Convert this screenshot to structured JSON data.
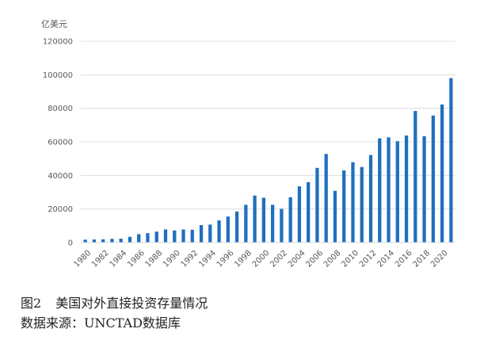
{
  "chart_data": {
    "type": "bar",
    "unit_label": "亿美元",
    "ylim": [
      0,
      120000
    ],
    "yticks": [
      "0",
      "20000",
      "40000",
      "60000",
      "80000",
      "100000",
      "120000"
    ],
    "grid": true,
    "bar_color": "#1f6fbf",
    "categories": [
      "1980",
      "1981",
      "1982",
      "1983",
      "1984",
      "1985",
      "1986",
      "1987",
      "1988",
      "1989",
      "1990",
      "1991",
      "1992",
      "1993",
      "1994",
      "1995",
      "1996",
      "1997",
      "1998",
      "1999",
      "2000",
      "2001",
      "2002",
      "2003",
      "2004",
      "2005",
      "2006",
      "2007",
      "2008",
      "2009",
      "2010",
      "2011",
      "2012",
      "2013",
      "2014",
      "2015",
      "2016",
      "2017",
      "2018",
      "2019",
      "2020",
      "2021"
    ],
    "xtick_labels": [
      "1980",
      "",
      "1982",
      "",
      "1984",
      "",
      "1986",
      "",
      "1988",
      "",
      "1990",
      "",
      "1992",
      "",
      "1994",
      "",
      "1996",
      "",
      "1998",
      "",
      "2000",
      "",
      "2002",
      "",
      "2004",
      "",
      "2006",
      "",
      "2008",
      "",
      "2010",
      "",
      "2012",
      "",
      "2014",
      "",
      "2016",
      "",
      "2018",
      "",
      "2020",
      ""
    ],
    "values": [
      1700,
      1800,
      1900,
      2200,
      2300,
      3400,
      5000,
      5600,
      6500,
      7800,
      7200,
      7800,
      7600,
      10400,
      10700,
      13200,
      15500,
      18500,
      22500,
      28000,
      26700,
      22500,
      20100,
      27000,
      33500,
      36000,
      44500,
      52800,
      30800,
      43000,
      47900,
      45000,
      52200,
      62100,
      62700,
      60400,
      63800,
      78400,
      63400,
      75700,
      82300,
      98000
    ]
  },
  "caption": {
    "figure_number": "图2",
    "title": "美国对外直接投资存量情况",
    "source": "数据来源：UNCTAD数据库"
  }
}
